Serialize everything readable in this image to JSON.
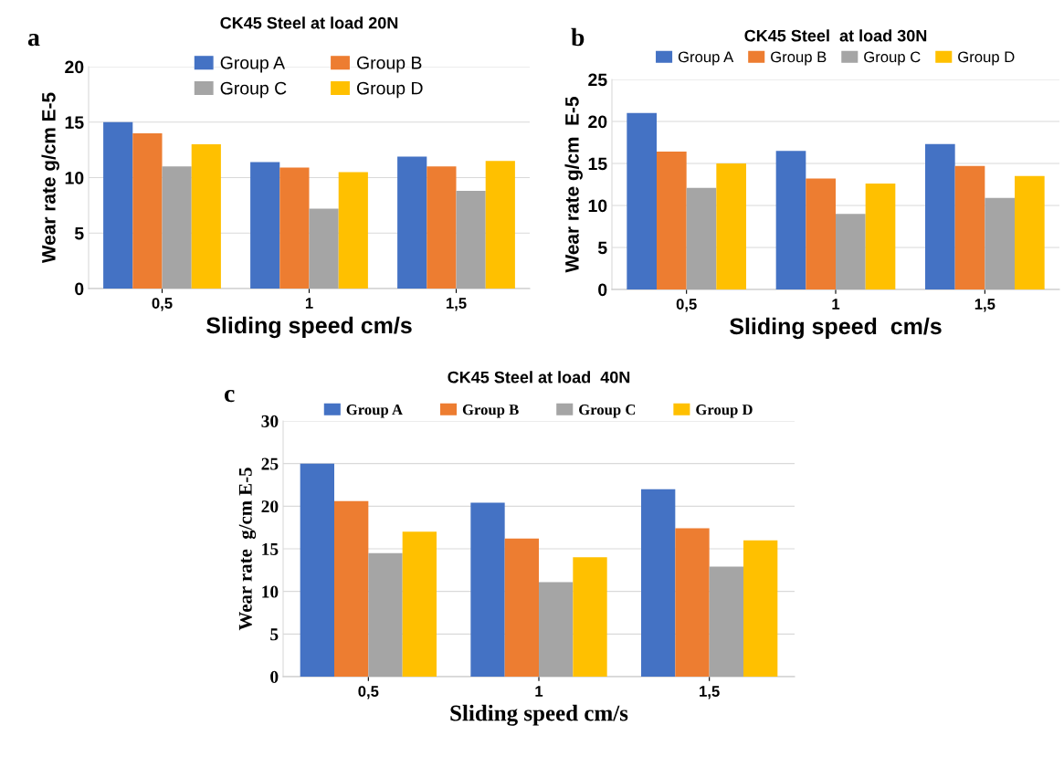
{
  "chart_data": [
    {
      "type": "bar",
      "title": "CK45 Steel at load 20N",
      "xlabel": "Sliding speed cm/s",
      "ylabel": "Wear rate g/cm E-5",
      "annotations": [
        "a"
      ],
      "categories": [
        "0,5",
        "1",
        "1,5"
      ],
      "series": [
        {
          "name": "Group A",
          "color": "#4472c4",
          "values": [
            15,
            11.4,
            11.9
          ]
        },
        {
          "name": "Group B",
          "color": "#ed7d31",
          "values": [
            14,
            10.9,
            11
          ]
        },
        {
          "name": "Group C",
          "color": "#a5a5a5",
          "values": [
            11,
            7.2,
            8.8
          ]
        },
        {
          "name": "Group D",
          "color": "#ffc000",
          "values": [
            13,
            10.5,
            11.5
          ]
        }
      ],
      "ylim": [
        0,
        20
      ],
      "yticks": [
        0,
        5,
        10,
        15,
        20
      ],
      "grid": "y",
      "legend": "top"
    },
    {
      "type": "bar",
      "title": "CK45 Steel  at load 30N",
      "xlabel": "Sliding speed  cm/s",
      "ylabel": "Wear rate g/cm  E-5",
      "annotations": [
        "b"
      ],
      "categories": [
        "0,5",
        "1",
        "1,5"
      ],
      "series": [
        {
          "name": "Group A",
          "color": "#4472c4",
          "values": [
            21,
            16.5,
            17.3
          ]
        },
        {
          "name": "Group B",
          "color": "#ed7d31",
          "values": [
            16.4,
            13.2,
            14.7
          ]
        },
        {
          "name": "Group C",
          "color": "#a5a5a5",
          "values": [
            12.1,
            9,
            10.9
          ]
        },
        {
          "name": "Group D",
          "color": "#ffc000",
          "values": [
            15,
            12.6,
            13.5
          ]
        }
      ],
      "ylim": [
        0,
        25
      ],
      "yticks": [
        0,
        5,
        10,
        15,
        20,
        25
      ],
      "grid": "y",
      "legend": "top"
    },
    {
      "type": "bar",
      "title": "CK45 Steel at load  40N",
      "xlabel": "Sliding speed cm/s",
      "ylabel": "Wear rate  g/cm E-5",
      "annotations": [
        "c"
      ],
      "categories": [
        "0,5",
        "1",
        "1,5"
      ],
      "series": [
        {
          "name": "Group A",
          "color": "#4472c4",
          "values": [
            25,
            20.4,
            22
          ]
        },
        {
          "name": "Group B",
          "color": "#ed7d31",
          "values": [
            20.6,
            16.2,
            17.4
          ]
        },
        {
          "name": "Group C",
          "color": "#a5a5a5",
          "values": [
            14.5,
            11.1,
            12.9
          ]
        },
        {
          "name": "Group D",
          "color": "#ffc000",
          "values": [
            17,
            14,
            16
          ]
        }
      ],
      "ylim": [
        0,
        30
      ],
      "yticks": [
        0,
        5,
        10,
        15,
        20,
        25,
        30
      ],
      "grid": "y",
      "legend": "top"
    }
  ]
}
